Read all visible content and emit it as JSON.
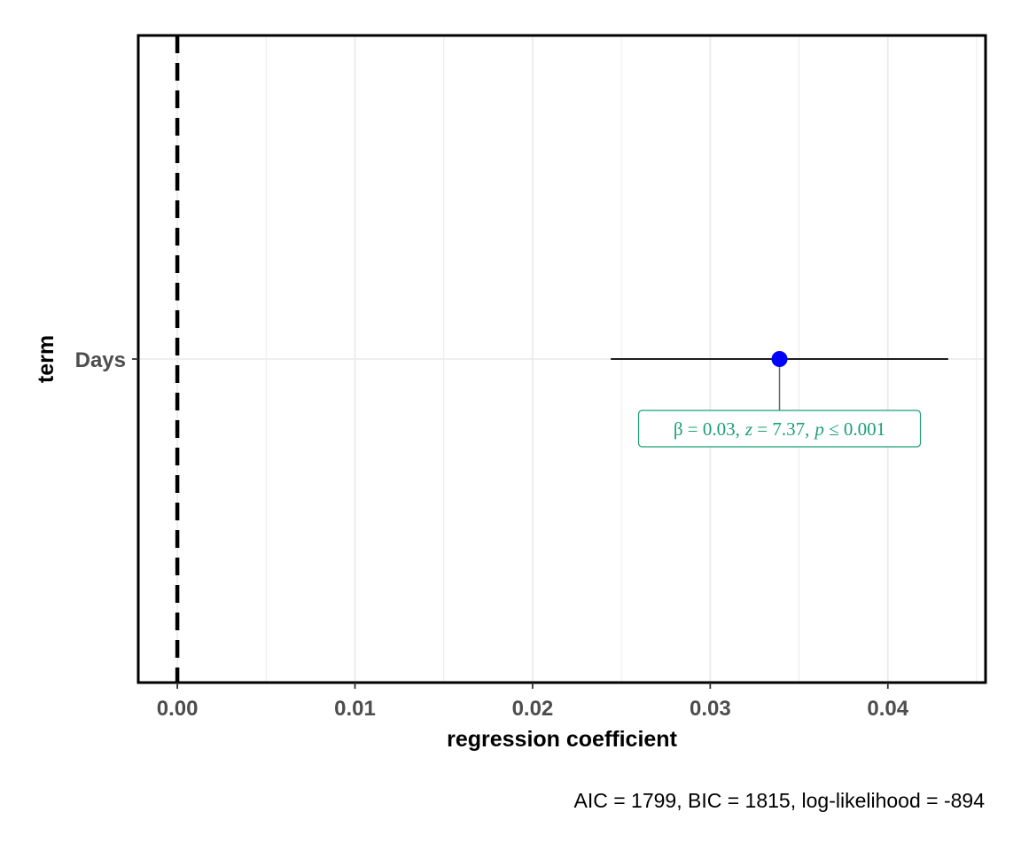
{
  "chart_data": {
    "type": "scatter",
    "title": "",
    "xlabel": "regression coefficient",
    "ylabel": "term",
    "xlim": [
      -0.0022,
      0.0455
    ],
    "x_ticks": [
      0.0,
      0.01,
      0.02,
      0.03,
      0.04
    ],
    "x_tick_labels": [
      "0.00",
      "0.01",
      "0.02",
      "0.03",
      "0.04"
    ],
    "y_categories": [
      "Days"
    ],
    "grid": true,
    "reference_line": 0,
    "points": [
      {
        "term": "Days",
        "estimate": 0.0339,
        "conf_low": 0.0244,
        "conf_high": 0.0434
      }
    ],
    "annotation": {
      "beta_label": "β = 0.03,",
      "z_symbol": "z",
      "z_rest": " = 7.37,",
      "p_symbol": "p",
      "p_rest": " ≤ 0.001"
    },
    "caption": "AIC = 1799, BIC = 1815, log-likelihood = -894"
  },
  "colors": {
    "point": "#0000ff",
    "annotation": "#1b9e77",
    "ci_line": "#000000",
    "grid": "#ebebeb",
    "reference_line": "#000000"
  }
}
